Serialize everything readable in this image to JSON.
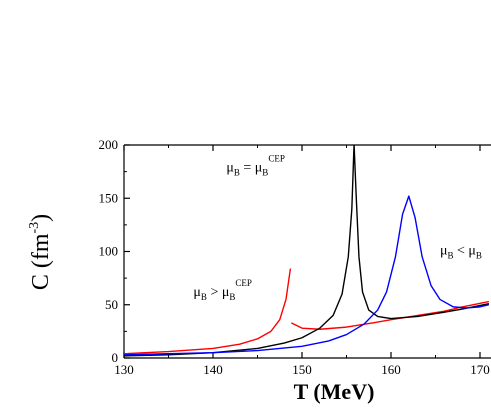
{
  "chart_data": {
    "type": "line",
    "title": "",
    "xlabel": "T (MeV)",
    "ylabel": "C (fm",
    "ylabel_sup": "-3",
    "ylabel_close": ")",
    "xlim": [
      130,
      171
    ],
    "ylim": [
      0,
      200
    ],
    "xticks": [
      130,
      140,
      150,
      160,
      170
    ],
    "yticks": [
      0,
      50,
      100,
      150,
      200
    ],
    "xtick_labels": [
      "130",
      "140",
      "150",
      "160",
      "170"
    ],
    "ytick_labels": [
      "0",
      "50",
      "100",
      "150",
      "200"
    ],
    "grid": false,
    "series": [
      {
        "color": "#ff0000",
        "x": [
          130,
          135,
          140,
          143,
          145,
          146.5,
          147.5,
          148.2,
          148.7
        ],
        "y": [
          4,
          6,
          9,
          13,
          18,
          25,
          36,
          55,
          84
        ]
      },
      {
        "color": "#ff0000",
        "x": [
          148.8,
          150,
          152,
          155,
          158,
          160,
          163,
          166,
          168,
          171
        ],
        "y": [
          33,
          28,
          27,
          29,
          33,
          36,
          40,
          44,
          48,
          53
        ]
      },
      {
        "color": "#000000",
        "x": [
          130,
          135,
          140,
          145,
          148,
          150,
          152,
          153.5,
          154.5,
          155.2,
          155.6,
          155.85,
          156.1,
          156.4,
          156.8,
          157.5,
          158.5,
          160,
          163,
          166,
          168,
          171
        ],
        "y": [
          2,
          3,
          5,
          9,
          14,
          19,
          28,
          40,
          60,
          95,
          140,
          201,
          150,
          95,
          62,
          45,
          39,
          37,
          39,
          43,
          46,
          51
        ]
      },
      {
        "color": "#0000ff",
        "x": [
          130,
          135,
          140,
          145,
          150,
          153,
          155,
          157,
          158.5,
          159.5,
          160.5,
          161.3,
          162,
          162.7,
          163.5,
          164.5,
          165.5,
          167,
          168.5,
          170,
          171
        ],
        "y": [
          3,
          4,
          5,
          7,
          11,
          16,
          22,
          32,
          45,
          62,
          95,
          135,
          152,
          132,
          95,
          68,
          55,
          48,
          47,
          48,
          50
        ]
      }
    ],
    "annotations": [
      {
        "id": "gt",
        "base": "μ",
        "sub": "B",
        "op": " > ",
        "base2": "μ",
        "sub2": "B",
        "sup2": "CEP",
        "x": 137.8,
        "y": 58
      },
      {
        "id": "eq",
        "base": "μ",
        "sub": "B",
        "op": " = ",
        "base2": "μ",
        "sub2": "B",
        "sup2": "CEP",
        "x": 141.5,
        "y": 175
      },
      {
        "id": "lt",
        "base": "μ",
        "sub": "B",
        "op": " < ",
        "base2": "μ",
        "sub2": "B",
        "sup2": "",
        "x": 165.5,
        "y": 97
      }
    ]
  }
}
